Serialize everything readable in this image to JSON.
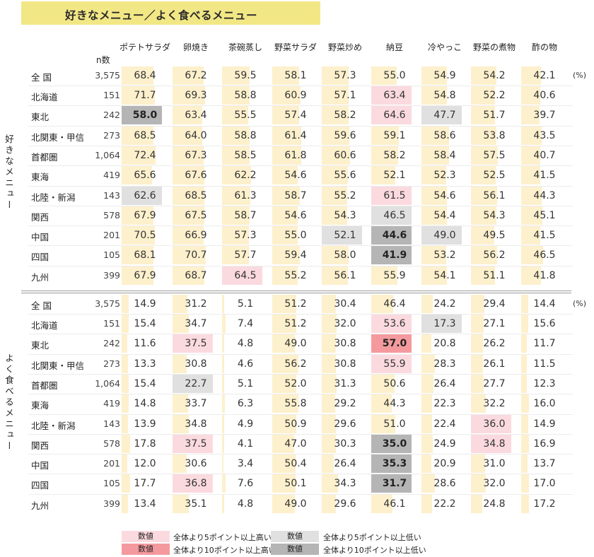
{
  "title": "好きなメニュー／よく食べるメニュー",
  "n_header": "n数",
  "unit": "(%)",
  "colors": {
    "title_bg": "#f2e785",
    "bar": "#fdf0cc",
    "hi5": "#fbdadf",
    "hi10": "#f49a9e",
    "lo5": "#e0e0e0",
    "lo10": "#b5b5b5"
  },
  "chart_data": {
    "type": "table",
    "columns": [
      "ポテトサラダ",
      "卵焼き",
      "茶碗蒸し",
      "野菜サラダ",
      "野菜炒め",
      "納豆",
      "冷やっこ",
      "野菜の煮物",
      "酢の物"
    ],
    "sections": [
      {
        "label": "好きなメニュー",
        "rows": [
          {
            "region": "全 国",
            "n": "3,575",
            "values": [
              68.4,
              67.2,
              59.5,
              58.1,
              57.3,
              55.0,
              54.9,
              54.2,
              42.1
            ],
            "highlights": [
              "",
              "",
              "",
              "",
              "",
              "",
              "",
              "",
              ""
            ]
          },
          {
            "region": "北海道",
            "n": "151",
            "values": [
              71.7,
              69.3,
              58.8,
              60.9,
              57.1,
              63.4,
              54.8,
              52.2,
              40.6
            ],
            "highlights": [
              "",
              "",
              "",
              "",
              "",
              "hi5",
              "",
              "",
              ""
            ]
          },
          {
            "region": "東北",
            "n": "242",
            "values": [
              58.0,
              63.4,
              55.5,
              57.4,
              58.2,
              64.6,
              47.7,
              51.7,
              39.7
            ],
            "highlights": [
              "lo10",
              "",
              "",
              "",
              "",
              "hi5",
              "lo5",
              "",
              ""
            ]
          },
          {
            "region": "北関東・甲信",
            "n": "273",
            "values": [
              68.5,
              64.0,
              58.8,
              61.4,
              59.6,
              59.1,
              58.6,
              53.8,
              43.5
            ],
            "highlights": [
              "",
              "",
              "",
              "",
              "",
              "",
              "",
              "",
              ""
            ]
          },
          {
            "region": "首都圏",
            "n": "1,064",
            "values": [
              72.4,
              67.3,
              58.5,
              61.8,
              60.6,
              58.2,
              58.4,
              57.5,
              40.7
            ],
            "highlights": [
              "",
              "",
              "",
              "",
              "",
              "",
              "",
              "",
              ""
            ]
          },
          {
            "region": "東海",
            "n": "419",
            "values": [
              65.6,
              67.6,
              62.2,
              54.6,
              55.6,
              52.1,
              52.3,
              52.5,
              41.5
            ],
            "highlights": [
              "",
              "",
              "",
              "",
              "",
              "",
              "",
              "",
              ""
            ]
          },
          {
            "region": "北陸・新潟",
            "n": "143",
            "values": [
              62.6,
              68.5,
              61.3,
              58.7,
              55.2,
              61.5,
              54.6,
              56.1,
              44.3
            ],
            "highlights": [
              "lo5",
              "",
              "",
              "",
              "",
              "hi5",
              "",
              "",
              ""
            ]
          },
          {
            "region": "関西",
            "n": "578",
            "values": [
              67.9,
              67.5,
              58.7,
              54.6,
              54.3,
              46.5,
              54.4,
              54.3,
              45.1
            ],
            "highlights": [
              "",
              "",
              "",
              "",
              "",
              "lo5",
              "",
              "",
              ""
            ]
          },
          {
            "region": "中国",
            "n": "201",
            "values": [
              70.5,
              66.9,
              57.3,
              55.0,
              52.1,
              44.6,
              49.0,
              49.5,
              41.5
            ],
            "highlights": [
              "",
              "",
              "",
              "",
              "lo5",
              "lo10",
              "lo5",
              "",
              ""
            ]
          },
          {
            "region": "四国",
            "n": "105",
            "values": [
              68.1,
              70.7,
              57.7,
              59.4,
              58.0,
              41.9,
              53.2,
              56.2,
              46.5
            ],
            "highlights": [
              "",
              "",
              "",
              "",
              "",
              "lo10",
              "",
              "",
              ""
            ]
          },
          {
            "region": "九州",
            "n": "399",
            "values": [
              67.9,
              68.7,
              64.5,
              55.2,
              56.1,
              55.9,
              54.1,
              51.1,
              41.8
            ],
            "highlights": [
              "",
              "",
              "hi5",
              "",
              "",
              "",
              "",
              "",
              ""
            ]
          }
        ]
      },
      {
        "label": "よく食べるメニュー",
        "rows": [
          {
            "region": "全 国",
            "n": "3,575",
            "values": [
              14.9,
              31.2,
              5.1,
              51.2,
              30.4,
              46.4,
              24.2,
              29.4,
              14.4
            ],
            "highlights": [
              "",
              "",
              "",
              "",
              "",
              "",
              "",
              "",
              ""
            ]
          },
          {
            "region": "北海道",
            "n": "151",
            "values": [
              15.4,
              34.7,
              7.4,
              51.2,
              32.0,
              53.6,
              17.3,
              27.1,
              15.6
            ],
            "highlights": [
              "",
              "",
              "",
              "",
              "",
              "hi5",
              "lo5",
              "",
              ""
            ]
          },
          {
            "region": "東北",
            "n": "242",
            "values": [
              11.6,
              37.5,
              4.8,
              49.0,
              30.8,
              57.0,
              20.8,
              26.2,
              11.7
            ],
            "highlights": [
              "",
              "hi5",
              "",
              "",
              "",
              "hi10",
              "",
              "",
              ""
            ]
          },
          {
            "region": "北関東・甲信",
            "n": "273",
            "values": [
              13.3,
              30.8,
              4.6,
              56.2,
              30.8,
              55.9,
              28.3,
              26.1,
              11.5
            ],
            "highlights": [
              "",
              "",
              "",
              "",
              "",
              "hi5",
              "",
              "",
              ""
            ]
          },
          {
            "region": "首都圏",
            "n": "1,064",
            "values": [
              15.4,
              22.7,
              5.1,
              52.0,
              31.3,
              50.6,
              26.4,
              27.7,
              12.3
            ],
            "highlights": [
              "",
              "lo5",
              "",
              "",
              "",
              "",
              "",
              "",
              ""
            ]
          },
          {
            "region": "東海",
            "n": "419",
            "values": [
              14.8,
              33.7,
              6.3,
              55.8,
              29.2,
              44.3,
              22.3,
              32.2,
              16.0
            ],
            "highlights": [
              "",
              "",
              "",
              "",
              "",
              "",
              "",
              "",
              ""
            ]
          },
          {
            "region": "北陸・新潟",
            "n": "143",
            "values": [
              13.9,
              34.8,
              4.9,
              50.9,
              29.6,
              51.0,
              22.4,
              36.0,
              14.9
            ],
            "highlights": [
              "",
              "",
              "",
              "",
              "",
              "",
              "",
              "hi5",
              ""
            ]
          },
          {
            "region": "関西",
            "n": "578",
            "values": [
              17.8,
              37.5,
              4.1,
              47.0,
              30.3,
              35.0,
              24.9,
              34.8,
              16.9
            ],
            "highlights": [
              "",
              "hi5",
              "",
              "",
              "",
              "lo10",
              "",
              "hi5",
              ""
            ]
          },
          {
            "region": "中国",
            "n": "201",
            "values": [
              12.0,
              30.6,
              3.4,
              50.4,
              26.4,
              35.3,
              20.9,
              31.0,
              13.7
            ],
            "highlights": [
              "",
              "",
              "",
              "",
              "",
              "lo10",
              "",
              "",
              ""
            ]
          },
          {
            "region": "四国",
            "n": "105",
            "values": [
              17.7,
              36.8,
              7.6,
              50.1,
              34.3,
              31.7,
              28.6,
              32.0,
              17.0
            ],
            "highlights": [
              "",
              "hi5",
              "",
              "",
              "",
              "lo10",
              "",
              "",
              ""
            ]
          },
          {
            "region": "九州",
            "n": "399",
            "values": [
              13.4,
              35.1,
              4.8,
              49.0,
              29.6,
              46.1,
              22.2,
              24.8,
              17.2
            ],
            "highlights": [
              "",
              "",
              "",
              "",
              "",
              "",
              "",
              "",
              ""
            ]
          }
        ]
      }
    ]
  },
  "legend": {
    "sample": "数値",
    "hi5": "全体より5ポイント以上高い",
    "hi10": "全体より10ポイント以上高い",
    "lo5": "全体より5ポイント以上低い",
    "lo10": "全体より10ポイント以上低い"
  }
}
